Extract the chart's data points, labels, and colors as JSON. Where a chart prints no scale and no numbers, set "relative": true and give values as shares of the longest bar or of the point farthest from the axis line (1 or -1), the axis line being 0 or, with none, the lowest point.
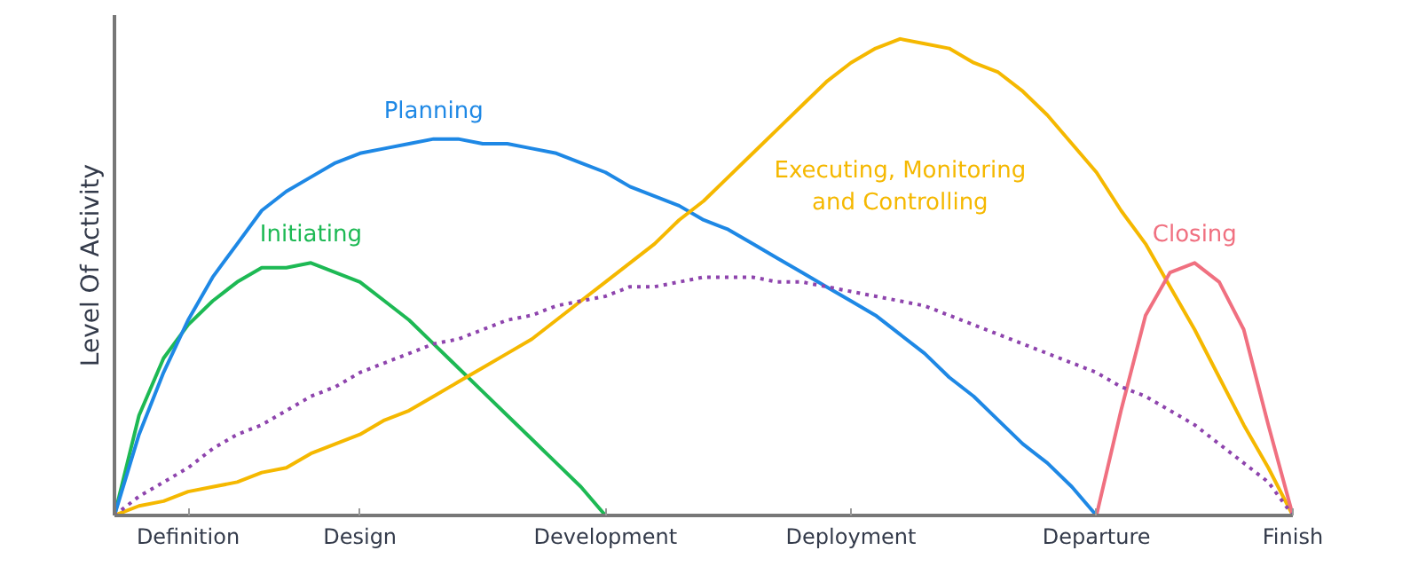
{
  "chart_data": {
    "type": "line",
    "relative": true,
    "ylabel": "Level Of Activity",
    "tick_labels": "x",
    "categories": [
      null,
      null,
      null,
      "Definition",
      null,
      null,
      null,
      null,
      null,
      null,
      "Design",
      null,
      null,
      null,
      null,
      null,
      null,
      null,
      null,
      null,
      "Development",
      null,
      null,
      null,
      null,
      null,
      null,
      null,
      null,
      null,
      "Deployment",
      null,
      null,
      null,
      null,
      null,
      null,
      null,
      null,
      null,
      "Departure",
      null,
      null,
      null,
      null,
      null,
      null,
      null,
      "Finish"
    ],
    "series": [
      {
        "name": "Initiating",
        "color": "#1db954",
        "values": [
          0,
          0.21,
          0.33,
          0.4,
          0.45,
          0.49,
          0.52,
          0.52,
          0.53,
          0.51,
          0.49,
          0.45,
          0.41,
          0.36,
          0.31,
          0.26,
          0.21,
          0.16,
          0.11,
          0.06,
          0,
          null,
          null,
          null,
          null,
          null,
          null,
          null,
          null,
          null,
          null,
          null,
          null,
          null,
          null,
          null,
          null,
          null,
          null,
          null,
          null,
          null,
          null,
          null,
          null,
          null,
          null,
          null,
          null
        ]
      },
      {
        "name": "Planning",
        "color": "#1e88e5",
        "values": [
          0,
          0.17,
          0.3,
          0.41,
          0.5,
          0.57,
          0.64,
          0.68,
          0.71,
          0.74,
          0.76,
          0.77,
          0.78,
          0.79,
          0.79,
          0.78,
          0.78,
          0.77,
          0.76,
          0.74,
          0.72,
          0.69,
          0.67,
          0.65,
          0.62,
          0.6,
          0.57,
          0.54,
          0.51,
          0.48,
          0.45,
          0.42,
          0.38,
          0.34,
          0.29,
          0.25,
          0.2,
          0.15,
          0.11,
          0.06,
          0,
          null,
          null,
          null,
          null,
          null,
          null,
          null,
          null
        ]
      },
      {
        "name": "Executing, Monitoring\nand Controlling",
        "color": "#f5b800",
        "values": [
          0,
          0.02,
          0.03,
          0.05,
          0.06,
          0.07,
          0.09,
          0.1,
          0.13,
          0.15,
          0.17,
          0.2,
          0.22,
          0.25,
          0.28,
          0.31,
          0.34,
          0.37,
          0.41,
          0.45,
          0.49,
          0.53,
          0.57,
          0.62,
          0.66,
          0.71,
          0.76,
          0.81,
          0.86,
          0.91,
          0.95,
          0.98,
          1.0,
          0.99,
          0.98,
          0.95,
          0.93,
          0.89,
          0.84,
          0.78,
          0.72,
          0.64,
          0.57,
          0.48,
          0.39,
          0.29,
          0.19,
          0.1,
          0
        ]
      },
      {
        "name": "Closing",
        "color": "#f07080",
        "values": [
          null,
          null,
          null,
          null,
          null,
          null,
          null,
          null,
          null,
          null,
          null,
          null,
          null,
          null,
          null,
          null,
          null,
          null,
          null,
          null,
          null,
          null,
          null,
          null,
          null,
          null,
          null,
          null,
          null,
          null,
          null,
          null,
          null,
          null,
          null,
          null,
          null,
          null,
          null,
          null,
          0,
          0.22,
          0.42,
          0.51,
          0.53,
          0.49,
          0.39,
          0.19,
          0
        ]
      },
      {
        "color": "#8e44ad",
        "line_style": "dotted",
        "values": [
          0,
          0.04,
          0.07,
          0.1,
          0.14,
          0.17,
          0.19,
          0.22,
          0.25,
          0.27,
          0.3,
          0.32,
          0.34,
          0.36,
          0.37,
          0.39,
          0.41,
          0.42,
          0.44,
          0.45,
          0.46,
          0.48,
          0.48,
          0.49,
          0.5,
          0.5,
          0.5,
          0.49,
          0.49,
          0.48,
          0.47,
          0.46,
          0.45,
          0.44,
          0.42,
          0.4,
          0.38,
          0.36,
          0.34,
          0.32,
          0.3,
          0.27,
          0.25,
          0.22,
          0.19,
          0.15,
          0.11,
          0.07,
          0
        ]
      }
    ]
  }
}
